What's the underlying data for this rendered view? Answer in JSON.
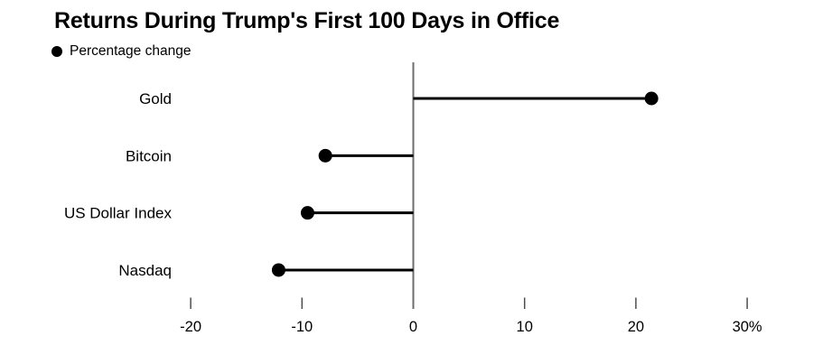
{
  "header": {
    "title": "Returns During Trump's First 100 Days in Office"
  },
  "legend": {
    "label": "Percentage change",
    "marker": "filled-circle",
    "color": "#000000"
  },
  "chart_data": {
    "type": "bar",
    "variant": "horizontal-lollipop",
    "title": "Returns During Trump's First 100 Days in Office",
    "legend_entries": [
      "Percentage change"
    ],
    "legend_position": "top-left",
    "categories": [
      "Gold",
      "Bitcoin",
      "US Dollar Index",
      "Nasdaq"
    ],
    "values": [
      21.4,
      -7.9,
      -9.5,
      -12.1
    ],
    "unit": "%",
    "xlabel": "",
    "ylabel": "",
    "x_ticks": [
      -20,
      -10,
      0,
      10,
      20,
      30
    ],
    "x_tick_labels": [
      "-20",
      "-10",
      "0",
      "10",
      "20",
      "30%"
    ],
    "xlim": [
      -21,
      34
    ],
    "grid": false,
    "zero_baseline": true,
    "colors": {
      "marker": "#000000",
      "stem": "#000000",
      "zero_axis": "#6e6e6e",
      "tick": "#4d4d4d",
      "text": "#000000",
      "background": "#ffffff"
    }
  }
}
